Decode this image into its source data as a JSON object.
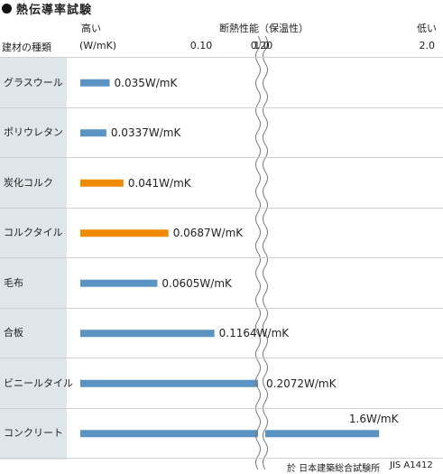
{
  "header": {
    "title": "熱伝導率試験",
    "row_header": "建材の種類",
    "high_label": "高い",
    "low_label": "低い",
    "unit_label": "(W/mK)",
    "axis_title": "断熱性能（保温性）"
  },
  "footer": {
    "source": "於 日本建築総合試験所",
    "standard": "JIS A1412"
  },
  "colors": {
    "insulation_bar": "#5b93c3",
    "cork_bar": "#f08a00",
    "sidebar_bg": "#dfe6ea"
  },
  "chart_data": {
    "type": "bar",
    "orientation": "horizontal",
    "scale": "log",
    "axis_break": "between 0.20 and 1.0",
    "xlim": [
      0.025,
      2.0
    ],
    "grid": false,
    "x_ticks": [
      "0.10",
      "0.20",
      "1.0",
      "2.0"
    ],
    "x_tick_values": [
      0.1,
      0.2,
      1.0,
      2.0
    ],
    "categories": [
      "グラスウール",
      "ポリウレタン",
      "炭化コルク",
      "コルクタイル",
      "毛布",
      "合板",
      "ビニールタイル",
      "コンクリート"
    ],
    "values": [
      0.035,
      0.0337,
      0.041,
      0.0687,
      0.0605,
      0.1164,
      0.2072,
      1.6
    ],
    "value_labels": [
      "0.035W/mK",
      "0.0337W/mK",
      "0.041W/mK",
      "0.0687W/mK",
      "0.0605W/mK",
      "0.1164W/mK",
      "0.2072W/mK",
      "1.6W/mK"
    ],
    "highlight": [
      false,
      false,
      true,
      true,
      false,
      false,
      false,
      false
    ]
  }
}
